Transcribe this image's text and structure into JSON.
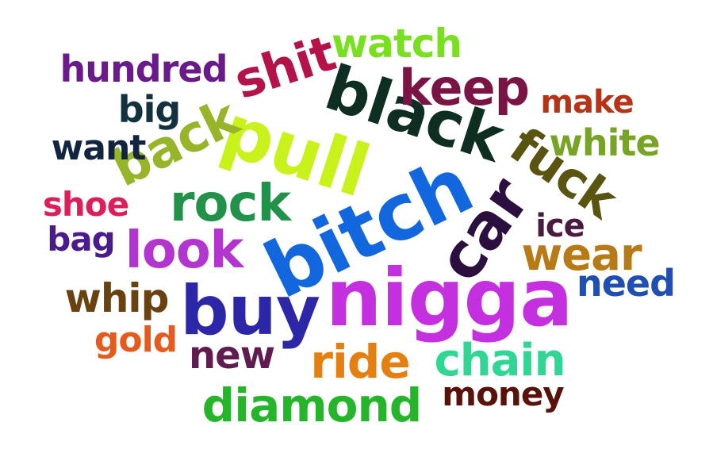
{
  "words": [
    {
      "text": "nigga",
      "color": "#c42fe0"
    },
    {
      "text": "bitch",
      "color": "#1266de"
    },
    {
      "text": "pull",
      "color": "#c8f21a"
    },
    {
      "text": "black",
      "color": "#0e2e22"
    },
    {
      "text": "buy",
      "color": "#2b27a8"
    },
    {
      "text": "car",
      "color": "#2b0f3e"
    },
    {
      "text": "fuck",
      "color": "#59540f"
    },
    {
      "text": "back",
      "color": "#98b52a"
    },
    {
      "text": "shit",
      "color": "#b5124a"
    },
    {
      "text": "rock",
      "color": "#22914a"
    },
    {
      "text": "look",
      "color": "#b235cf"
    },
    {
      "text": "keep",
      "color": "#7a1444"
    },
    {
      "text": "watch",
      "color": "#78e01e"
    },
    {
      "text": "wear",
      "color": "#b87a14"
    },
    {
      "text": "ride",
      "color": "#e57f10"
    },
    {
      "text": "chain",
      "color": "#2fd694"
    },
    {
      "text": "diamond",
      "color": "#25b52b"
    },
    {
      "text": "hundred",
      "color": "#6a1a8a"
    },
    {
      "text": "white",
      "color": "#77a424"
    },
    {
      "text": "big",
      "color": "#123240"
    },
    {
      "text": "want",
      "color": "#122540"
    },
    {
      "text": "shoe",
      "color": "#df1d59"
    },
    {
      "text": "bag",
      "color": "#4b1a8c"
    },
    {
      "text": "whip",
      "color": "#6a4210"
    },
    {
      "text": "gold",
      "color": "#e85a1c"
    },
    {
      "text": "new",
      "color": "#601b50"
    },
    {
      "text": "need",
      "color": "#1f4fb5"
    },
    {
      "text": "ice",
      "color": "#4a1b3e"
    },
    {
      "text": "make",
      "color": "#b83215"
    },
    {
      "text": "money",
      "color": "#5a1208"
    }
  ]
}
